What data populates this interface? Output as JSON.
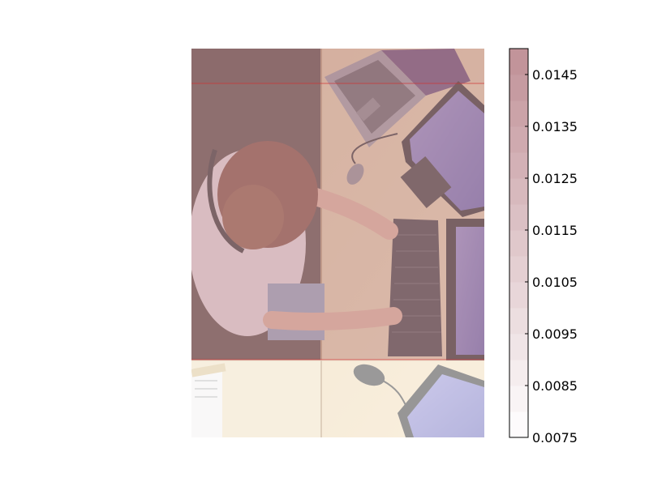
{
  "chart_data": {
    "type": "heatmap",
    "title": "",
    "xlabel": "",
    "ylabel": "",
    "background_image": {
      "description_icons": [
        "person-icon",
        "laptop-icon",
        "monitor-icon",
        "keyboard-icon",
        "mouse-icon"
      ]
    },
    "overlay_rows": [
      {
        "value": 0.0149
      },
      {
        "value": 0.0142
      },
      {
        "value": 0.0079
      }
    ],
    "colorbar": {
      "vmin": 0.0075,
      "vmax": 0.015,
      "levels": 15,
      "ticks": [
        0.0075,
        0.0085,
        0.0095,
        0.0105,
        0.0115,
        0.0125,
        0.0135,
        0.0145
      ],
      "tick_labels": [
        "0.0075",
        "0.0085",
        "0.0095",
        "0.0105",
        "0.0115",
        "0.0125",
        "0.0135",
        "0.0145"
      ],
      "colormap": "Reds",
      "color_low": "#ffffff",
      "color_high": "#c09096"
    }
  }
}
